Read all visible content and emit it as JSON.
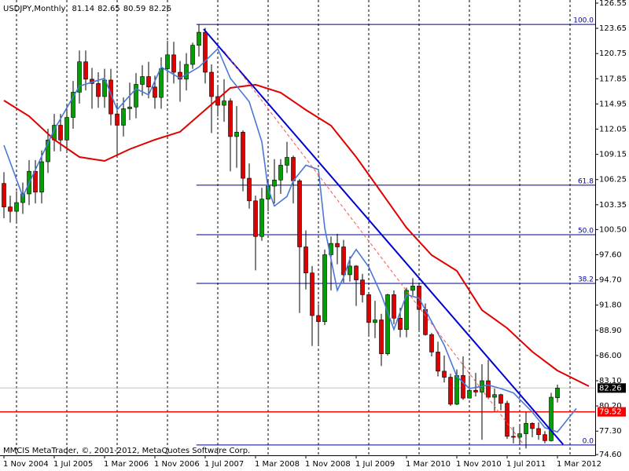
{
  "chart_data": {
    "type": "candlestick",
    "title": "USDJPY,Monthly",
    "footer": "MMCIS MetaTrader, ©, 2001-2012, MetaQuotes Software Corp.",
    "categories": [
      "1 Nov 2004",
      null,
      null,
      null,
      null,
      null,
      null,
      null,
      "1 Jul 2005",
      null,
      null,
      null,
      null,
      null,
      null,
      null,
      "1 Mar 2006",
      null,
      null,
      null,
      null,
      null,
      null,
      null,
      "1 Nov 2006",
      null,
      null,
      null,
      null,
      null,
      null,
      null,
      "1 Jul 2007",
      null,
      null,
      null,
      null,
      null,
      null,
      null,
      "1 Mar 2008",
      null,
      null,
      null,
      null,
      null,
      null,
      null,
      "1 Nov 2008",
      null,
      null,
      null,
      null,
      null,
      null,
      null,
      "1 Jul 2009",
      null,
      null,
      null,
      null,
      null,
      null,
      null,
      "1 Mar 2010",
      null,
      null,
      null,
      null,
      null,
      null,
      null,
      "1 Nov 2010",
      null,
      null,
      null,
      null,
      null,
      null,
      null,
      "1 Jul 2011",
      null,
      null,
      null,
      null,
      null,
      null,
      null,
      "1 Mar 2012"
    ],
    "ohlc": [
      [
        105.8,
        107.1,
        101.8,
        103.1
      ],
      [
        103.1,
        104.4,
        101.3,
        102.6
      ],
      [
        102.6,
        104.9,
        101.3,
        103.6
      ],
      [
        103.6,
        105.9,
        102.3,
        104.6
      ],
      [
        104.6,
        108.5,
        103.3,
        107.2
      ],
      [
        107.2,
        108.5,
        103.5,
        104.8
      ],
      [
        104.8,
        109.6,
        103.5,
        108.3
      ],
      [
        108.3,
        112.1,
        107.0,
        110.8
      ],
      [
        110.8,
        113.8,
        109.5,
        112.5
      ],
      [
        112.5,
        113.8,
        109.5,
        110.8
      ],
      [
        110.8,
        114.7,
        109.5,
        113.4
      ],
      [
        113.4,
        117.6,
        112.1,
        116.3
      ],
      [
        116.3,
        121.1,
        115.0,
        119.8
      ],
      [
        119.8,
        121.1,
        116.5,
        117.8
      ],
      [
        117.8,
        119.1,
        114.4,
        117.3
      ],
      [
        117.3,
        118.6,
        114.5,
        115.8
      ],
      [
        115.8,
        119.0,
        114.5,
        117.7
      ],
      [
        117.7,
        119.0,
        112.5,
        113.8
      ],
      [
        113.8,
        115.1,
        109.0,
        112.5
      ],
      [
        112.5,
        115.7,
        111.2,
        114.4
      ],
      [
        114.4,
        117.4,
        113.1,
        114.6
      ],
      [
        114.6,
        118.5,
        113.3,
        117.2
      ],
      [
        117.2,
        119.4,
        115.9,
        118.1
      ],
      [
        118.1,
        119.8,
        115.6,
        116.9
      ],
      [
        116.9,
        118.2,
        114.4,
        115.7
      ],
      [
        115.7,
        120.3,
        114.4,
        119.0
      ],
      [
        119.0,
        122.2,
        117.7,
        120.6
      ],
      [
        120.6,
        122.1,
        117.3,
        118.6
      ],
      [
        118.6,
        119.9,
        115.2,
        117.8
      ],
      [
        117.8,
        120.8,
        116.5,
        119.5
      ],
      [
        119.5,
        122.0,
        119.0,
        121.7
      ],
      [
        121.7,
        124.1,
        120.4,
        123.2
      ],
      [
        123.2,
        123.7,
        117.3,
        118.6
      ],
      [
        118.6,
        119.5,
        111.6,
        115.8
      ],
      [
        115.8,
        117.1,
        113.5,
        114.8
      ],
      [
        114.8,
        117.8,
        112.9,
        115.3
      ],
      [
        115.3,
        115.6,
        107.2,
        111.2
      ],
      [
        111.2,
        114.7,
        107.6,
        111.7
      ],
      [
        111.7,
        111.9,
        104.9,
        106.4
      ],
      [
        106.4,
        108.1,
        102.9,
        103.8
      ],
      [
        103.8,
        104.4,
        95.8,
        99.7
      ],
      [
        99.7,
        105.3,
        99.2,
        104.0
      ],
      [
        104.0,
        106.3,
        102.6,
        105.5
      ],
      [
        105.5,
        108.6,
        103.5,
        106.2
      ],
      [
        106.2,
        108.6,
        104.6,
        107.9
      ],
      [
        107.9,
        110.6,
        107.0,
        108.8
      ],
      [
        108.8,
        109.0,
        103.5,
        106.1
      ],
      [
        106.1,
        106.3,
        90.9,
        98.5
      ],
      [
        98.5,
        100.4,
        93.6,
        95.5
      ],
      [
        95.5,
        96.3,
        87.1,
        90.6
      ],
      [
        90.6,
        91.9,
        87.2,
        89.9
      ],
      [
        89.9,
        98.2,
        89.5,
        97.6
      ],
      [
        97.6,
        99.7,
        93.5,
        98.9
      ],
      [
        98.9,
        100.0,
        96.5,
        98.5
      ],
      [
        98.5,
        99.3,
        94.4,
        95.3
      ],
      [
        95.3,
        97.4,
        94.5,
        96.3
      ],
      [
        96.3,
        96.4,
        91.7,
        94.7
      ],
      [
        94.7,
        95.4,
        92.1,
        93.0
      ],
      [
        93.0,
        93.3,
        88.2,
        89.8
      ],
      [
        89.8,
        92.3,
        88.0,
        90.1
      ],
      [
        90.1,
        90.8,
        84.8,
        86.2
      ],
      [
        86.2,
        93.1,
        86.0,
        93.0
      ],
      [
        93.0,
        93.5,
        89.6,
        90.3
      ],
      [
        90.3,
        91.5,
        88.1,
        89.0
      ],
      [
        89.0,
        93.8,
        88.1,
        93.5
      ],
      [
        93.5,
        94.9,
        92.9,
        94.0
      ],
      [
        94.0,
        94.1,
        88.9,
        91.3
      ],
      [
        91.3,
        92.0,
        88.3,
        88.4
      ],
      [
        88.4,
        88.6,
        85.9,
        86.4
      ],
      [
        86.4,
        87.6,
        83.6,
        84.2
      ],
      [
        84.2,
        86.0,
        82.9,
        83.5
      ],
      [
        83.5,
        83.9,
        80.2,
        80.4
      ],
      [
        80.4,
        84.4,
        80.3,
        83.7
      ],
      [
        83.7,
        85.9,
        80.9,
        81.1
      ],
      [
        81.1,
        83.7,
        81.1,
        82.0
      ],
      [
        82.0,
        84.0,
        81.3,
        81.8
      ],
      [
        81.8,
        85.0,
        76.3,
        83.1
      ],
      [
        83.1,
        85.5,
        81.0,
        81.2
      ],
      [
        81.2,
        82.2,
        79.6,
        81.5
      ],
      [
        81.5,
        81.6,
        79.7,
        80.5
      ],
      [
        80.5,
        80.8,
        76.4,
        76.7
      ],
      [
        76.7,
        77.8,
        75.9,
        76.6
      ],
      [
        76.6,
        77.9,
        75.9,
        77.0
      ],
      [
        77.0,
        79.5,
        75.3,
        78.2
      ],
      [
        78.2,
        78.3,
        76.6,
        77.6
      ],
      [
        77.6,
        78.3,
        76.3,
        76.9
      ],
      [
        76.9,
        77.3,
        75.9,
        76.2
      ],
      [
        76.2,
        81.7,
        76.1,
        81.2
      ],
      [
        81.14,
        82.65,
        80.59,
        82.26
      ]
    ],
    "up_color": "#00a000",
    "down_color": "#e00000",
    "ylim": [
      74.52,
      126.91
    ],
    "yticks": [
      126.55,
      123.65,
      120.75,
      117.85,
      114.95,
      112.05,
      109.15,
      106.25,
      103.35,
      {
        "value": 100.5,
        "label": "100.50"
      },
      {
        "value": 97.6,
        "label": "97.60"
      },
      {
        "value": 94.7,
        "label": "94.70"
      },
      {
        "value": 91.8,
        "label": "91.80"
      },
      {
        "value": 88.9,
        "label": "88.90"
      },
      {
        "value": 86,
        "label": "86.00"
      },
      {
        "value": 83.1,
        "label": "83.10"
      },
      {
        "value": 80.2,
        "label": "80.20"
      },
      {
        "value": 77.3,
        "label": "77.30"
      },
      {
        "value": 74.6,
        "label": "74.60"
      }
    ],
    "lines": [
      {
        "color": "#e00000",
        "x": [
          0,
          4,
          8,
          12,
          16,
          20,
          24,
          28,
          32,
          36,
          40,
          44,
          48,
          52,
          56,
          60,
          64,
          68,
          72,
          76,
          80,
          84,
          88,
          93
        ],
        "values": [
          115.35,
          113.54,
          110.83,
          108.84,
          108.39,
          109.75,
          110.83,
          111.74,
          114.26,
          116.79,
          117.16,
          116.25,
          114.26,
          112.46,
          108.84,
          104.78,
          100.71,
          97.55,
          95.75,
          91.23,
          89.15,
          86.44,
          84.27,
          82.47
        ]
      },
      {
        "color": "#4a78d8",
        "x": [
          0,
          3,
          8,
          12,
          16,
          18,
          21,
          23,
          25,
          28,
          31,
          34,
          36,
          39,
          41,
          42,
          43,
          45,
          46,
          48,
          50,
          51,
          53,
          54,
          55,
          56,
          58,
          60,
          62,
          64,
          66,
          68,
          70,
          72,
          74,
          77,
          79,
          81,
          84,
          86,
          88,
          91
        ],
        "values": [
          110.2,
          104.3,
          112.0,
          117.0,
          117.9,
          114.3,
          116.7,
          116.0,
          119.2,
          117.9,
          119.2,
          121.3,
          117.9,
          115.2,
          110.6,
          105.2,
          103.2,
          104.3,
          106.1,
          107.9,
          107.4,
          100.7,
          93.5,
          95.0,
          97.1,
          98.2,
          96.2,
          93.0,
          89.0,
          93.0,
          92.6,
          89.9,
          87.2,
          83.6,
          82.2,
          82.6,
          82.2,
          81.7,
          79.5,
          77.7,
          77.2,
          79.9
        ]
      }
    ],
    "trendlines": [
      {
        "color": "#0000d0",
        "x": [
          31.75,
          88.9
        ],
        "values": [
          123.57,
          75.78
        ]
      },
      {
        "color": "#ff5050",
        "dashed": true,
        "x": [
          35,
          82.5
        ],
        "values": [
          121.04,
          75.87
        ]
      }
    ],
    "fibonacci": {
      "color": "#000090",
      "x_start": 30.6,
      "levels": [
        {
          "label": "100.0",
          "value": 124.1
        },
        {
          "label": "61.8",
          "value": 105.6
        },
        {
          "label": "50.0",
          "value": 99.9
        },
        {
          "label": "38.2",
          "value": 94.3
        },
        {
          "label": "0.0",
          "value": 75.7
        }
      ]
    },
    "hlines": [
      {
        "value": 79.52,
        "color": "#ff0000"
      }
    ],
    "grid": true
  }
}
